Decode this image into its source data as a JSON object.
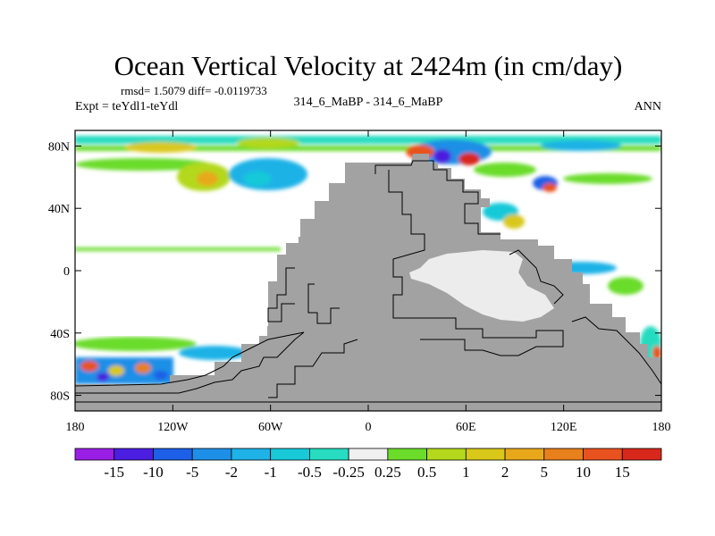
{
  "chart_data": {
    "type": "heatmap",
    "title": "Ocean Vertical Velocity at 2424m (in cm/day)",
    "stats_text": "rmsd= 1.5079 diff= -0.0119733",
    "expt_text": "Expt = teYdl1-teYdl",
    "case_text": "314_6_MaBP - 314_6_MaBP",
    "season_text": "ANN",
    "x_ticks": [
      "180",
      "120W",
      "60W",
      "0",
      "60E",
      "120E",
      "180"
    ],
    "x_values": [
      -180,
      -120,
      -60,
      0,
      60,
      120,
      180
    ],
    "y_ticks": [
      "80N",
      "40N",
      "0",
      "40S",
      "80S"
    ],
    "y_values": [
      80,
      40,
      0,
      -40,
      -80
    ],
    "xlim": [
      -180,
      180
    ],
    "ylim": [
      -90,
      90
    ],
    "colorbar": {
      "labels": [
        "-15",
        "-10",
        "-5",
        "-2",
        "-1",
        "-0.5",
        "-0.25",
        "0.25",
        "0.5",
        "1",
        "2",
        "5",
        "10",
        "15"
      ],
      "colors": [
        "#9a1ee6",
        "#4b1ee0",
        "#1d5fe6",
        "#1e8fe6",
        "#1fb2e6",
        "#19c9d8",
        "#27dcc0",
        "#f0f0f0",
        "#6bdc2a",
        "#b4d81c",
        "#d9c81a",
        "#e8a81a",
        "#e8801c",
        "#e8521e",
        "#d8281c"
      ]
    },
    "field_samples": [
      {
        "name": "north-polar-band",
        "lon": [
          -180,
          180
        ],
        "lat": [
          72,
          84
        ],
        "value": "mixed -2 to 5"
      },
      {
        "name": "north-pacific-high",
        "lon": [
          -115,
          -95
        ],
        "lat": [
          42,
          56
        ],
        "value": 2
      },
      {
        "name": "north-pacific-low",
        "lon": [
          -80,
          -45
        ],
        "lat": [
          38,
          58
        ],
        "value": -1
      },
      {
        "name": "arctic-atlantic",
        "lon": [
          35,
          75
        ],
        "lat": [
          62,
          78
        ],
        "value": "mixed -15 to 15"
      },
      {
        "name": "southern-ocean-pacific",
        "lon": [
          -180,
          -130
        ],
        "lat": [
          -80,
          -60
        ],
        "value": "mixed -5 to 10"
      }
    ]
  }
}
